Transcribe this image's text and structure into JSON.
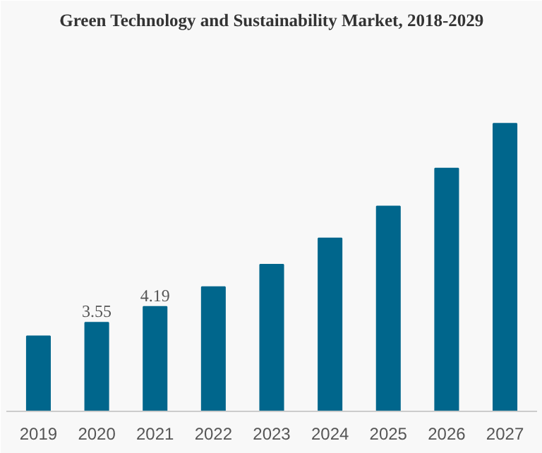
{
  "chart_data": {
    "type": "bar",
    "title": "Green Technology and Sustainability Market, 2018-2029",
    "categories": [
      "2019",
      "2020",
      "2021",
      "2022",
      "2023",
      "2024",
      "2025",
      "2026",
      "2027"
    ],
    "tick_labels": "x",
    "values": [
      3.01,
      3.55,
      4.19,
      4.98,
      5.88,
      6.93,
      8.21,
      9.73,
      11.52
    ],
    "value_labels": [
      null,
      "3.55",
      "4.19",
      null,
      null,
      null,
      null,
      null,
      null
    ],
    "color": "#00668c",
    "grid": false
  }
}
